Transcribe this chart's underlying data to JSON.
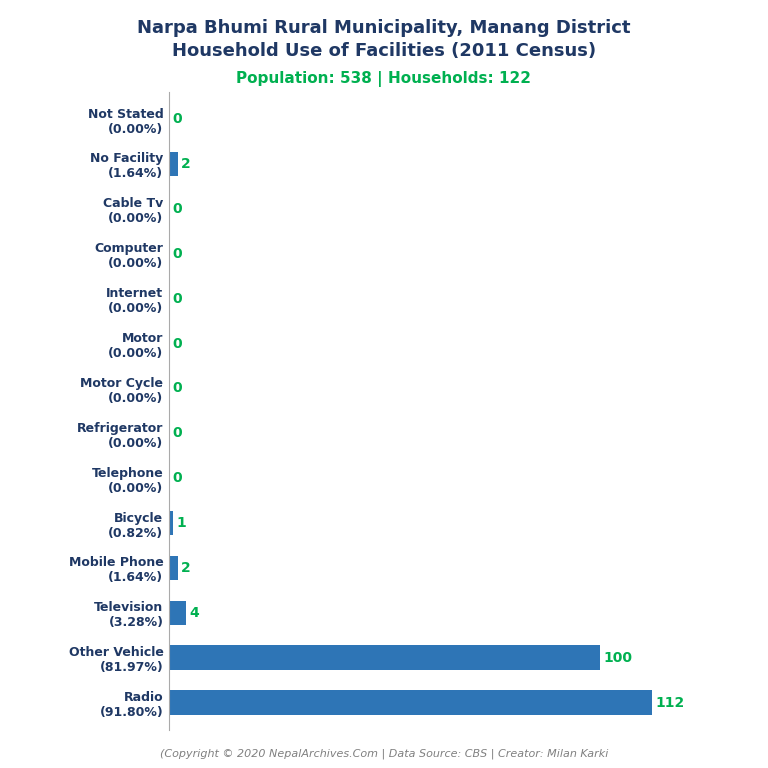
{
  "title_line1": "Narpa Bhumi Rural Municipality, Manang District",
  "title_line2": "Household Use of Facilities (2011 Census)",
  "subtitle": "Population: 538 | Households: 122",
  "footer": "(Copyright © 2020 NepalArchives.Com | Data Source: CBS | Creator: Milan Karki",
  "categories": [
    "Not Stated\n(0.00%)",
    "No Facility\n(1.64%)",
    "Cable Tv\n(0.00%)",
    "Computer\n(0.00%)",
    "Internet\n(0.00%)",
    "Motor\n(0.00%)",
    "Motor Cycle\n(0.00%)",
    "Refrigerator\n(0.00%)",
    "Telephone\n(0.00%)",
    "Bicycle\n(0.82%)",
    "Mobile Phone\n(1.64%)",
    "Television\n(3.28%)",
    "Other Vehicle\n(81.97%)",
    "Radio\n(91.80%)"
  ],
  "values": [
    0,
    2,
    0,
    0,
    0,
    0,
    0,
    0,
    0,
    1,
    2,
    4,
    100,
    112
  ],
  "bar_color": "#2e75b6",
  "label_color": "#00b050",
  "title_color": "#1f3864",
  "subtitle_color": "#00b050",
  "footer_color": "#808080",
  "background_color": "#ffffff",
  "xlim": [
    0,
    130
  ]
}
